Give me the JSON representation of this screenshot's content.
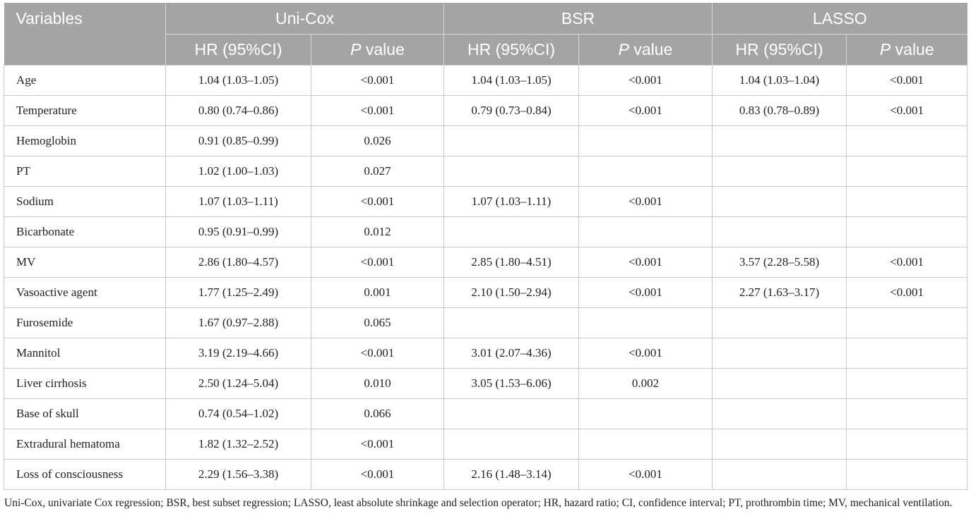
{
  "table": {
    "header_variables": "Variables",
    "groups": [
      "Uni-Cox",
      "BSR",
      "LASSO"
    ],
    "subheaders": {
      "hr": "HR (95%CI)",
      "p_italic": "P",
      "p_rest": " value"
    },
    "rows": [
      {
        "variable": "Age",
        "unicox_hr": "1.04 (1.03–1.05)",
        "unicox_p": "<0.001",
        "bsr_hr": "1.04 (1.03–1.05)",
        "bsr_p": "<0.001",
        "lasso_hr": "1.04 (1.03–1.04)",
        "lasso_p": "<0.001"
      },
      {
        "variable": "Temperature",
        "unicox_hr": "0.80 (0.74–0.86)",
        "unicox_p": "<0.001",
        "bsr_hr": "0.79 (0.73–0.84)",
        "bsr_p": "<0.001",
        "lasso_hr": "0.83 (0.78–0.89)",
        "lasso_p": "<0.001"
      },
      {
        "variable": "Hemoglobin",
        "unicox_hr": "0.91 (0.85–0.99)",
        "unicox_p": "0.026",
        "bsr_hr": "",
        "bsr_p": "",
        "lasso_hr": "",
        "lasso_p": ""
      },
      {
        "variable": "PT",
        "unicox_hr": "1.02 (1.00–1.03)",
        "unicox_p": "0.027",
        "bsr_hr": "",
        "bsr_p": "",
        "lasso_hr": "",
        "lasso_p": ""
      },
      {
        "variable": "Sodium",
        "unicox_hr": "1.07 (1.03–1.11)",
        "unicox_p": "<0.001",
        "bsr_hr": "1.07 (1.03–1.11)",
        "bsr_p": "<0.001",
        "lasso_hr": "",
        "lasso_p": ""
      },
      {
        "variable": "Bicarbonate",
        "unicox_hr": "0.95 (0.91–0.99)",
        "unicox_p": "0.012",
        "bsr_hr": "",
        "bsr_p": "",
        "lasso_hr": "",
        "lasso_p": ""
      },
      {
        "variable": "MV",
        "unicox_hr": "2.86 (1.80–4.57)",
        "unicox_p": "<0.001",
        "bsr_hr": "2.85 (1.80–4.51)",
        "bsr_p": "<0.001",
        "lasso_hr": "3.57 (2.28–5.58)",
        "lasso_p": "<0.001"
      },
      {
        "variable": "Vasoactive agent",
        "unicox_hr": "1.77 (1.25–2.49)",
        "unicox_p": "0.001",
        "bsr_hr": "2.10 (1.50–2.94)",
        "bsr_p": "<0.001",
        "lasso_hr": "2.27 (1.63–3.17)",
        "lasso_p": "<0.001"
      },
      {
        "variable": "Furosemide",
        "unicox_hr": "1.67 (0.97–2.88)",
        "unicox_p": "0.065",
        "bsr_hr": "",
        "bsr_p": "",
        "lasso_hr": "",
        "lasso_p": ""
      },
      {
        "variable": "Mannitol",
        "unicox_hr": "3.19 (2.19–4.66)",
        "unicox_p": "<0.001",
        "bsr_hr": "3.01 (2.07–4.36)",
        "bsr_p": "<0.001",
        "lasso_hr": "",
        "lasso_p": ""
      },
      {
        "variable": "Liver cirrhosis",
        "unicox_hr": "2.50 (1.24–5.04)",
        "unicox_p": "0.010",
        "bsr_hr": "3.05 (1.53–6.06)",
        "bsr_p": "0.002",
        "lasso_hr": "",
        "lasso_p": ""
      },
      {
        "variable": "Base of skull",
        "unicox_hr": "0.74 (0.54–1.02)",
        "unicox_p": "0.066",
        "bsr_hr": "",
        "bsr_p": "",
        "lasso_hr": "",
        "lasso_p": ""
      },
      {
        "variable": "Extradural hematoma",
        "unicox_hr": "1.82 (1.32–2.52)",
        "unicox_p": "<0.001",
        "bsr_hr": "",
        "bsr_p": "",
        "lasso_hr": "",
        "lasso_p": ""
      },
      {
        "variable": "Loss of consciousness",
        "unicox_hr": "2.29 (1.56–3.38)",
        "unicox_p": "<0.001",
        "bsr_hr": "2.16 (1.48–3.14)",
        "bsr_p": "<0.001",
        "lasso_hr": "",
        "lasso_p": ""
      }
    ]
  },
  "footnote": "Uni-Cox, univariate Cox regression; BSR, best subset regression; LASSO, least absolute shrinkage and selection operator; HR, hazard ratio; CI, confidence interval; PT, prothrombin time; MV, mechanical ventilation.",
  "colors": {
    "header_bg": "#a3a5a5",
    "header_text": "#ffffff",
    "grid_line": "#c8c8c8",
    "body_text": "#222222"
  }
}
